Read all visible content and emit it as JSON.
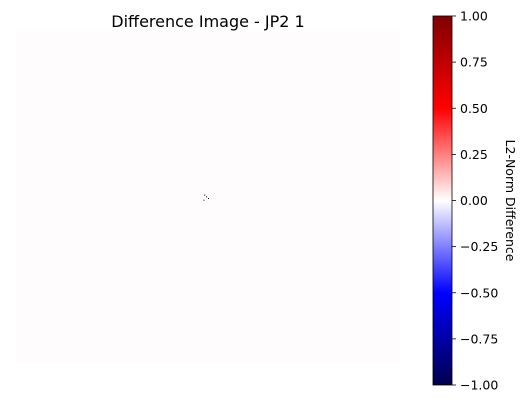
{
  "chart_data": {
    "type": "heatmap",
    "title": "Difference Image - JP2 1",
    "image": {
      "fill_color": "#fffcfd",
      "description_values": "near-zero difference everywhere except a few pixels near the center",
      "specks": [
        {
          "x": 0.49,
          "y": 0.49,
          "color": "#000000"
        },
        {
          "x": 0.495,
          "y": 0.495,
          "color": "#000000"
        },
        {
          "x": 0.5,
          "y": 0.5,
          "color": "#000000"
        },
        {
          "x": 0.488,
          "y": 0.505,
          "color": "#000000"
        }
      ]
    },
    "colorbar": {
      "colormap": "seismic",
      "label": "L2-Norm Difference",
      "vmin": -1.0,
      "vmax": 1.0,
      "ticks": [
        1.0,
        0.75,
        0.5,
        0.25,
        0.0,
        -0.25,
        -0.5,
        -0.75,
        -1.0
      ],
      "tick_labels": [
        "1.00",
        "0.75",
        "0.50",
        "0.25",
        "0.00",
        "−0.25",
        "−0.50",
        "−0.75",
        "−1.00"
      ],
      "stops": [
        {
          "value": -1.0,
          "color": "#00004c"
        },
        {
          "value": -0.5,
          "color": "#0000ff"
        },
        {
          "value": 0.0,
          "color": "#ffffff"
        },
        {
          "value": 0.5,
          "color": "#ff0000"
        },
        {
          "value": 1.0,
          "color": "#800000"
        }
      ]
    }
  }
}
